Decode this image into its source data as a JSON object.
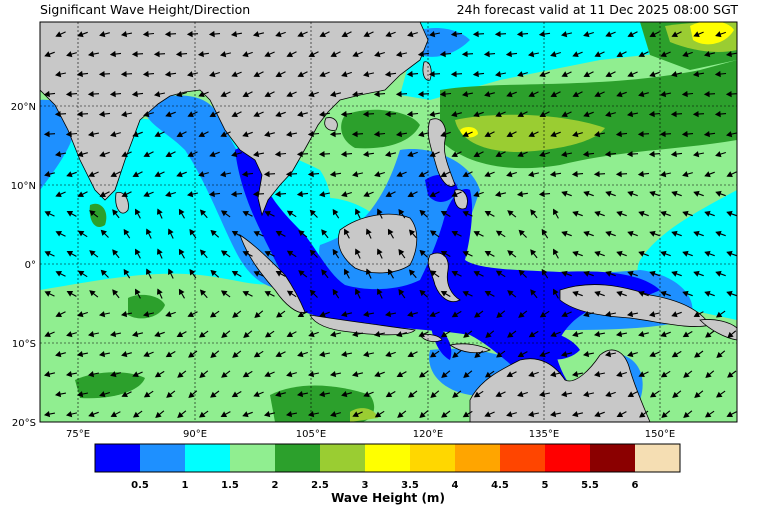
{
  "header": {
    "title": "Significant Wave Height/Direction",
    "valid_time": "24h forecast valid at 11 Dec 2025 08:00 SGT"
  },
  "map": {
    "lon_ticks": [
      "75°E",
      "90°E",
      "105°E",
      "120°E",
      "135°E",
      "150°E"
    ],
    "lat_ticks": [
      "20°N",
      "10°N",
      "0°",
      "10°S",
      "20°S"
    ],
    "land_color": "#c8c8c8"
  },
  "colorbar": {
    "label": "Wave Height (m)",
    "tick_labels": [
      "0.5",
      "1",
      "1.5",
      "2",
      "2.5",
      "3",
      "3.5",
      "4",
      "4.5",
      "5",
      "5.5",
      "6"
    ],
    "colors": [
      "#0000ff",
      "#1e90ff",
      "#00ffff",
      "#90ee90",
      "#2ca02c",
      "#9acd32",
      "#ffff00",
      "#ffd700",
      "#ffa500",
      "#ff4500",
      "#ff0000",
      "#8b0000",
      "#f5deb3"
    ]
  }
}
